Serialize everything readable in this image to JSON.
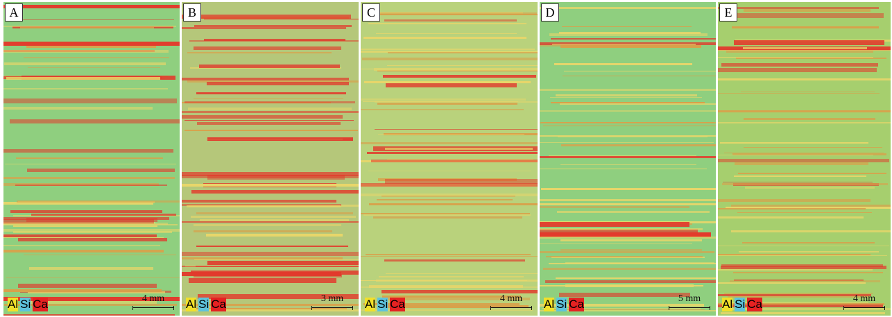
{
  "panels": [
    {
      "label": "A",
      "legend": [
        "Al",
        "Si",
        "Ca"
      ],
      "scale": "4 mm"
    },
    {
      "label": "B",
      "legend": [
        "Al",
        "Si",
        "Ca"
      ],
      "scale": "3 mm"
    },
    {
      "label": "C",
      "legend": [
        "Al",
        "Si",
        "Ca"
      ],
      "scale": "4 mm"
    },
    {
      "label": "D",
      "legend": [
        "Al",
        "Si",
        "Ca"
      ],
      "scale": "5 mm"
    },
    {
      "label": "E",
      "legend": [
        "Al",
        "Si",
        "Ca"
      ],
      "scale": "4 mm"
    }
  ]
}
